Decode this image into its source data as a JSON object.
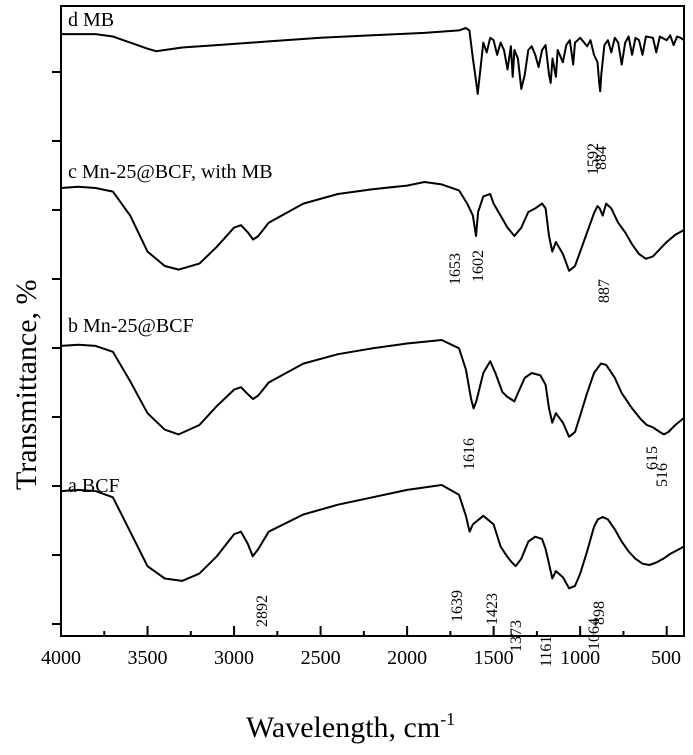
{
  "chart_data": {
    "type": "line",
    "title": "",
    "xlabel": "Wavelength, cm",
    "xlabel_sup": "-1",
    "ylabel": "Transmittance, %",
    "xlim": [
      4000,
      400
    ],
    "x_reversed": true,
    "xticks": [
      4000,
      3500,
      3000,
      2500,
      2000,
      1500,
      1000,
      500
    ],
    "grid": false,
    "legend": "none",
    "y_units": "stacked offsets, no numeric labels",
    "series": [
      {
        "name": "d MB",
        "points": [
          [
            4000,
            0.95
          ],
          [
            3800,
            0.95
          ],
          [
            3700,
            0.93
          ],
          [
            3600,
            0.88
          ],
          [
            3500,
            0.83
          ],
          [
            3450,
            0.81
          ],
          [
            3400,
            0.82
          ],
          [
            3300,
            0.84
          ],
          [
            3100,
            0.86
          ],
          [
            2800,
            0.89
          ],
          [
            2500,
            0.92
          ],
          [
            2200,
            0.94
          ],
          [
            1900,
            0.96
          ],
          [
            1700,
            0.98
          ],
          [
            1660,
            1.0
          ],
          [
            1640,
            0.98
          ],
          [
            1620,
            0.75
          ],
          [
            1600,
            0.55
          ],
          [
            1592,
            0.46
          ],
          [
            1585,
            0.55
          ],
          [
            1560,
            0.88
          ],
          [
            1540,
            0.8
          ],
          [
            1520,
            0.92
          ],
          [
            1500,
            0.9
          ],
          [
            1480,
            0.78
          ],
          [
            1460,
            0.88
          ],
          [
            1440,
            0.82
          ],
          [
            1420,
            0.66
          ],
          [
            1400,
            0.85
          ],
          [
            1390,
            0.6
          ],
          [
            1380,
            0.82
          ],
          [
            1360,
            0.75
          ],
          [
            1340,
            0.5
          ],
          [
            1320,
            0.62
          ],
          [
            1300,
            0.82
          ],
          [
            1280,
            0.85
          ],
          [
            1260,
            0.78
          ],
          [
            1240,
            0.68
          ],
          [
            1220,
            0.82
          ],
          [
            1200,
            0.86
          ],
          [
            1180,
            0.62
          ],
          [
            1170,
            0.55
          ],
          [
            1160,
            0.75
          ],
          [
            1140,
            0.6
          ],
          [
            1130,
            0.82
          ],
          [
            1100,
            0.72
          ],
          [
            1080,
            0.86
          ],
          [
            1060,
            0.9
          ],
          [
            1040,
            0.7
          ],
          [
            1030,
            0.88
          ],
          [
            1000,
            0.92
          ],
          [
            960,
            0.85
          ],
          [
            940,
            0.9
          ],
          [
            920,
            0.78
          ],
          [
            900,
            0.72
          ],
          [
            890,
            0.55
          ],
          [
            884,
            0.48
          ],
          [
            878,
            0.62
          ],
          [
            860,
            0.86
          ],
          [
            840,
            0.9
          ],
          [
            820,
            0.8
          ],
          [
            800,
            0.92
          ],
          [
            780,
            0.88
          ],
          [
            760,
            0.7
          ],
          [
            740,
            0.88
          ],
          [
            720,
            0.93
          ],
          [
            700,
            0.78
          ],
          [
            680,
            0.92
          ],
          [
            660,
            0.9
          ],
          [
            640,
            0.78
          ],
          [
            620,
            0.93
          ],
          [
            580,
            0.92
          ],
          [
            560,
            0.8
          ],
          [
            540,
            0.93
          ],
          [
            500,
            0.9
          ],
          [
            480,
            0.94
          ],
          [
            460,
            0.86
          ],
          [
            440,
            0.93
          ],
          [
            420,
            0.92
          ],
          [
            400,
            0.9
          ]
        ],
        "peak_labels": [
          "1592",
          "884"
        ]
      },
      {
        "name": "c Mn-25@BCF, with MB",
        "points": [
          [
            4000,
            0.95
          ],
          [
            3900,
            0.96
          ],
          [
            3800,
            0.95
          ],
          [
            3700,
            0.92
          ],
          [
            3600,
            0.72
          ],
          [
            3500,
            0.42
          ],
          [
            3400,
            0.3
          ],
          [
            3320,
            0.27
          ],
          [
            3200,
            0.32
          ],
          [
            3100,
            0.46
          ],
          [
            3000,
            0.62
          ],
          [
            2960,
            0.64
          ],
          [
            2920,
            0.58
          ],
          [
            2890,
            0.52
          ],
          [
            2860,
            0.55
          ],
          [
            2800,
            0.66
          ],
          [
            2600,
            0.82
          ],
          [
            2400,
            0.9
          ],
          [
            2200,
            0.94
          ],
          [
            2000,
            0.97
          ],
          [
            1900,
            1.0
          ],
          [
            1800,
            0.98
          ],
          [
            1700,
            0.93
          ],
          [
            1653,
            0.82
          ],
          [
            1620,
            0.72
          ],
          [
            1602,
            0.55
          ],
          [
            1590,
            0.75
          ],
          [
            1560,
            0.88
          ],
          [
            1520,
            0.9
          ],
          [
            1500,
            0.82
          ],
          [
            1460,
            0.72
          ],
          [
            1420,
            0.62
          ],
          [
            1380,
            0.55
          ],
          [
            1340,
            0.62
          ],
          [
            1300,
            0.75
          ],
          [
            1260,
            0.78
          ],
          [
            1220,
            0.82
          ],
          [
            1200,
            0.78
          ],
          [
            1180,
            0.55
          ],
          [
            1161,
            0.42
          ],
          [
            1140,
            0.5
          ],
          [
            1100,
            0.4
          ],
          [
            1064,
            0.26
          ],
          [
            1030,
            0.3
          ],
          [
            1000,
            0.42
          ],
          [
            960,
            0.58
          ],
          [
            920,
            0.74
          ],
          [
            900,
            0.8
          ],
          [
            887,
            0.78
          ],
          [
            870,
            0.72
          ],
          [
            850,
            0.82
          ],
          [
            820,
            0.78
          ],
          [
            780,
            0.66
          ],
          [
            740,
            0.58
          ],
          [
            700,
            0.48
          ],
          [
            660,
            0.4
          ],
          [
            620,
            0.36
          ],
          [
            580,
            0.38
          ],
          [
            540,
            0.44
          ],
          [
            500,
            0.5
          ],
          [
            450,
            0.56
          ],
          [
            400,
            0.6
          ]
        ],
        "peak_labels": [
          "1653",
          "1602",
          "887"
        ]
      },
      {
        "name": "b Mn-25@BCF",
        "points": [
          [
            4000,
            0.95
          ],
          [
            3900,
            0.96
          ],
          [
            3800,
            0.95
          ],
          [
            3700,
            0.9
          ],
          [
            3600,
            0.65
          ],
          [
            3500,
            0.38
          ],
          [
            3400,
            0.24
          ],
          [
            3320,
            0.2
          ],
          [
            3200,
            0.28
          ],
          [
            3100,
            0.44
          ],
          [
            3000,
            0.58
          ],
          [
            2960,
            0.6
          ],
          [
            2920,
            0.54
          ],
          [
            2890,
            0.5
          ],
          [
            2860,
            0.53
          ],
          [
            2800,
            0.64
          ],
          [
            2600,
            0.8
          ],
          [
            2400,
            0.88
          ],
          [
            2200,
            0.93
          ],
          [
            2000,
            0.97
          ],
          [
            1800,
            1.0
          ],
          [
            1700,
            0.93
          ],
          [
            1660,
            0.75
          ],
          [
            1630,
            0.5
          ],
          [
            1616,
            0.42
          ],
          [
            1600,
            0.48
          ],
          [
            1560,
            0.72
          ],
          [
            1520,
            0.82
          ],
          [
            1490,
            0.72
          ],
          [
            1450,
            0.56
          ],
          [
            1423,
            0.52
          ],
          [
            1380,
            0.48
          ],
          [
            1360,
            0.55
          ],
          [
            1320,
            0.68
          ],
          [
            1280,
            0.72
          ],
          [
            1230,
            0.7
          ],
          [
            1200,
            0.62
          ],
          [
            1180,
            0.42
          ],
          [
            1161,
            0.3
          ],
          [
            1140,
            0.38
          ],
          [
            1100,
            0.3
          ],
          [
            1064,
            0.18
          ],
          [
            1030,
            0.22
          ],
          [
            1000,
            0.36
          ],
          [
            960,
            0.55
          ],
          [
            920,
            0.72
          ],
          [
            880,
            0.8
          ],
          [
            850,
            0.79
          ],
          [
            800,
            0.68
          ],
          [
            760,
            0.55
          ],
          [
            700,
            0.42
          ],
          [
            650,
            0.33
          ],
          [
            615,
            0.28
          ],
          [
            580,
            0.26
          ],
          [
            540,
            0.22
          ],
          [
            516,
            0.2
          ],
          [
            490,
            0.22
          ],
          [
            450,
            0.28
          ],
          [
            400,
            0.34
          ]
        ],
        "peak_labels": [
          "1616",
          "615",
          "516"
        ]
      },
      {
        "name": "a BCF",
        "points": [
          [
            4000,
            0.95
          ],
          [
            3900,
            0.96
          ],
          [
            3800,
            0.95
          ],
          [
            3700,
            0.9
          ],
          [
            3600,
            0.62
          ],
          [
            3500,
            0.34
          ],
          [
            3400,
            0.24
          ],
          [
            3300,
            0.22
          ],
          [
            3200,
            0.28
          ],
          [
            3100,
            0.42
          ],
          [
            3000,
            0.6
          ],
          [
            2960,
            0.62
          ],
          [
            2920,
            0.52
          ],
          [
            2892,
            0.42
          ],
          [
            2860,
            0.48
          ],
          [
            2800,
            0.62
          ],
          [
            2600,
            0.76
          ],
          [
            2400,
            0.84
          ],
          [
            2200,
            0.9
          ],
          [
            2000,
            0.96
          ],
          [
            1800,
            1.0
          ],
          [
            1700,
            0.92
          ],
          [
            1660,
            0.75
          ],
          [
            1639,
            0.62
          ],
          [
            1620,
            0.68
          ],
          [
            1560,
            0.75
          ],
          [
            1500,
            0.68
          ],
          [
            1460,
            0.5
          ],
          [
            1423,
            0.42
          ],
          [
            1400,
            0.38
          ],
          [
            1373,
            0.34
          ],
          [
            1340,
            0.4
          ],
          [
            1300,
            0.54
          ],
          [
            1260,
            0.58
          ],
          [
            1220,
            0.56
          ],
          [
            1200,
            0.48
          ],
          [
            1180,
            0.36
          ],
          [
            1161,
            0.24
          ],
          [
            1140,
            0.3
          ],
          [
            1100,
            0.25
          ],
          [
            1064,
            0.16
          ],
          [
            1030,
            0.18
          ],
          [
            1000,
            0.28
          ],
          [
            960,
            0.46
          ],
          [
            920,
            0.66
          ],
          [
            898,
            0.72
          ],
          [
            870,
            0.74
          ],
          [
            840,
            0.72
          ],
          [
            800,
            0.64
          ],
          [
            760,
            0.54
          ],
          [
            720,
            0.46
          ],
          [
            680,
            0.4
          ],
          [
            640,
            0.36
          ],
          [
            600,
            0.35
          ],
          [
            560,
            0.37
          ],
          [
            520,
            0.4
          ],
          [
            480,
            0.44
          ],
          [
            440,
            0.47
          ],
          [
            400,
            0.5
          ]
        ],
        "peak_labels": [
          "2892",
          "1639",
          "1423",
          "1373",
          "1161",
          "1064",
          "898"
        ]
      }
    ]
  }
}
